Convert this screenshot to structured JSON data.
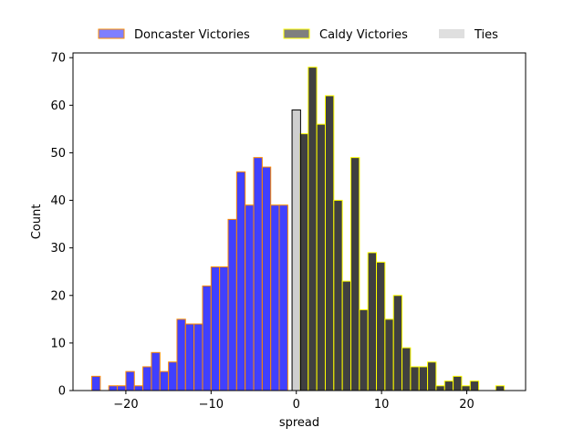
{
  "chart_data": {
    "type": "bar",
    "title": "",
    "xlabel": "spread",
    "ylabel": "Count",
    "xlim": [
      -26.2,
      26.9
    ],
    "ylim": [
      0,
      71
    ],
    "xticks": [
      -20,
      -10,
      0,
      10,
      20
    ],
    "yticks": [
      0,
      10,
      20,
      30,
      40,
      50,
      60,
      70
    ],
    "grid": false,
    "legend_placement": "top-center",
    "bin_width": 1,
    "series": [
      {
        "name": "Doncaster Victories",
        "fill": "#0000ff",
        "edge": "#ff8c00",
        "bins": [
          {
            "x": -24,
            "y": 3
          },
          {
            "x": -23,
            "y": 0
          },
          {
            "x": -22,
            "y": 1
          },
          {
            "x": -21,
            "y": 1
          },
          {
            "x": -20,
            "y": 4
          },
          {
            "x": -19,
            "y": 1
          },
          {
            "x": -18,
            "y": 5
          },
          {
            "x": -17,
            "y": 8
          },
          {
            "x": -16,
            "y": 4
          },
          {
            "x": -15,
            "y": 6
          },
          {
            "x": -14,
            "y": 15
          },
          {
            "x": -13,
            "y": 14
          },
          {
            "x": -12,
            "y": 14
          },
          {
            "x": -11,
            "y": 22
          },
          {
            "x": -10,
            "y": 26
          },
          {
            "x": -9,
            "y": 26
          },
          {
            "x": -8,
            "y": 36
          },
          {
            "x": -7,
            "y": 46
          },
          {
            "x": -6,
            "y": 39
          },
          {
            "x": -5,
            "y": 49
          },
          {
            "x": -4,
            "y": 47
          },
          {
            "x": -3,
            "y": 39
          },
          {
            "x": -2,
            "y": 39
          }
        ]
      },
      {
        "name": "Caldy Victories",
        "fill": "#000000",
        "edge": "#ffff00",
        "bins": [
          {
            "x": 0.4,
            "y": 54
          },
          {
            "x": 1.4,
            "y": 68
          },
          {
            "x": 2.4,
            "y": 56
          },
          {
            "x": 3.4,
            "y": 62
          },
          {
            "x": 4.4,
            "y": 40
          },
          {
            "x": 5.4,
            "y": 23
          },
          {
            "x": 6.4,
            "y": 49
          },
          {
            "x": 7.4,
            "y": 17
          },
          {
            "x": 8.4,
            "y": 29
          },
          {
            "x": 9.4,
            "y": 27
          },
          {
            "x": 10.4,
            "y": 15
          },
          {
            "x": 11.4,
            "y": 20
          },
          {
            "x": 12.4,
            "y": 9
          },
          {
            "x": 13.4,
            "y": 5
          },
          {
            "x": 14.4,
            "y": 5
          },
          {
            "x": 15.4,
            "y": 6
          },
          {
            "x": 16.4,
            "y": 1
          },
          {
            "x": 17.4,
            "y": 2
          },
          {
            "x": 18.4,
            "y": 3
          },
          {
            "x": 19.4,
            "y": 1
          },
          {
            "x": 20.4,
            "y": 2
          },
          {
            "x": 23.4,
            "y": 1
          }
        ]
      },
      {
        "name": "Ties",
        "fill": "#bfbfbf",
        "edge": "#000000",
        "bins": [
          {
            "x": -0.5,
            "y": 59
          }
        ]
      }
    ]
  }
}
